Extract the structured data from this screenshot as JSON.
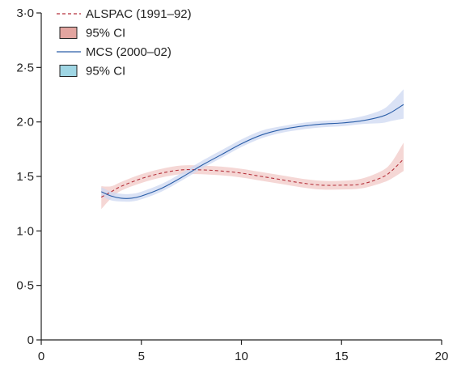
{
  "chart_data": {
    "type": "line",
    "title": "",
    "xlabel": "",
    "ylabel": "",
    "xlim": [
      0,
      20
    ],
    "ylim": [
      0,
      3.0
    ],
    "x_ticks": [
      0,
      5,
      10,
      15,
      20
    ],
    "x_tick_labels": [
      "0",
      "5",
      "10",
      "15",
      "20"
    ],
    "y_ticks": [
      0,
      0.5,
      1.0,
      1.5,
      2.0,
      2.5,
      3.0
    ],
    "y_tick_labels": [
      "0",
      "0·5",
      "1·0",
      "1·5",
      "2·0",
      "2·5",
      "3·0"
    ],
    "grid": false,
    "legend_position": "top-left",
    "legend": [
      {
        "label": "ALSPAC (1991–92)",
        "kind": "line",
        "style": "dashed",
        "color": "#b5323c"
      },
      {
        "label": "95% CI",
        "kind": "swatch",
        "fill": "#e3a5a0",
        "stroke": "#222222"
      },
      {
        "label": "MCS (2000–02)",
        "kind": "line",
        "style": "solid",
        "color": "#2a5ea8"
      },
      {
        "label": "95% CI",
        "kind": "swatch",
        "fill": "#9fd6e4",
        "stroke": "#222222"
      }
    ],
    "series": [
      {
        "name": "ALSPAC (1991–92)",
        "color": "#b5323c",
        "band_color": "#f2c9c7",
        "line_style": "dashed",
        "x": [
          3.0,
          3.5,
          4.0,
          5.0,
          6.0,
          7.0,
          8.0,
          9.0,
          10.0,
          11.0,
          12.0,
          13.0,
          14.0,
          15.0,
          16.0,
          17.0,
          17.5,
          18.1
        ],
        "y": [
          1.31,
          1.36,
          1.41,
          1.48,
          1.53,
          1.56,
          1.56,
          1.55,
          1.53,
          1.5,
          1.47,
          1.44,
          1.42,
          1.42,
          1.43,
          1.49,
          1.55,
          1.66
        ],
        "lower": [
          1.2,
          1.3,
          1.37,
          1.44,
          1.49,
          1.52,
          1.52,
          1.51,
          1.49,
          1.46,
          1.43,
          1.4,
          1.38,
          1.38,
          1.39,
          1.44,
          1.48,
          1.55
        ],
        "upper": [
          1.41,
          1.41,
          1.45,
          1.52,
          1.57,
          1.6,
          1.6,
          1.59,
          1.57,
          1.54,
          1.51,
          1.48,
          1.46,
          1.46,
          1.48,
          1.55,
          1.63,
          1.81
        ]
      },
      {
        "name": "MCS (2000–02)",
        "color": "#2a5ea8",
        "band_color": "#cdd8f2",
        "line_style": "solid",
        "x": [
          3.0,
          3.5,
          4.0,
          4.5,
          5.0,
          6.0,
          7.0,
          8.0,
          9.0,
          10.0,
          11.0,
          12.0,
          13.0,
          14.0,
          15.0,
          16.0,
          17.0,
          17.5,
          18.1
        ],
        "y": [
          1.36,
          1.32,
          1.3,
          1.3,
          1.32,
          1.39,
          1.49,
          1.6,
          1.7,
          1.8,
          1.88,
          1.93,
          1.96,
          1.98,
          1.99,
          2.01,
          2.05,
          2.09,
          2.16
        ],
        "lower": [
          1.32,
          1.28,
          1.27,
          1.27,
          1.29,
          1.36,
          1.46,
          1.57,
          1.67,
          1.77,
          1.85,
          1.9,
          1.93,
          1.95,
          1.96,
          1.98,
          1.99,
          2.01,
          2.03
        ],
        "upper": [
          1.4,
          1.36,
          1.34,
          1.34,
          1.36,
          1.43,
          1.53,
          1.64,
          1.74,
          1.84,
          1.92,
          1.96,
          1.99,
          2.01,
          2.02,
          2.05,
          2.11,
          2.18,
          2.3
        ]
      }
    ]
  }
}
